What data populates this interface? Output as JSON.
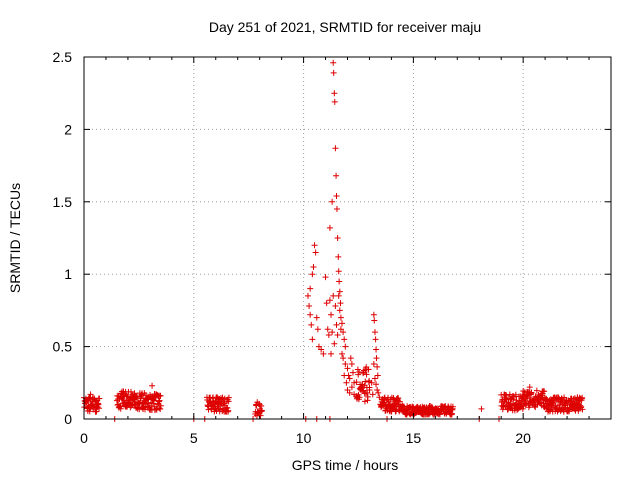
{
  "chart_data": {
    "type": "scatter",
    "title": "Day 251 of 2021, SRMTID for receiver maju",
    "xlabel": "GPS time / hours",
    "ylabel": "SRMTID / TECUs",
    "xlim": [
      0,
      24
    ],
    "ylim": [
      0,
      2.5
    ],
    "x_ticks": [
      0,
      5,
      10,
      15,
      20
    ],
    "x_tick_labels": [
      "0",
      "5",
      "10",
      "15",
      "20"
    ],
    "y_ticks": [
      0,
      0.5,
      1,
      1.5,
      2,
      2.5
    ],
    "y_tick_labels": [
      "0",
      "0.5",
      "1",
      "1.5",
      "2",
      "2.5"
    ],
    "grid": true,
    "marker": "+",
    "series_color": "#dd0000",
    "series": [
      {
        "name": "SRMTID",
        "segments": [
          {
            "x0": 0.0,
            "x1": 0.7,
            "base": 0.1,
            "amp": 0.05
          },
          {
            "x0": 1.5,
            "x1": 2.3,
            "base": 0.13,
            "amp": 0.06
          },
          {
            "x0": 2.3,
            "x1": 3.5,
            "base": 0.12,
            "amp": 0.06
          },
          {
            "x0": 5.6,
            "x1": 6.6,
            "base": 0.1,
            "amp": 0.05
          },
          {
            "x0": 7.8,
            "x1": 8.1,
            "base": 0.07,
            "amp": 0.05
          },
          {
            "x0": 12.4,
            "x1": 13.0,
            "base": 0.24,
            "amp": 0.12
          },
          {
            "x0": 13.5,
            "x1": 14.5,
            "base": 0.1,
            "amp": 0.05
          },
          {
            "x0": 14.5,
            "x1": 16.8,
            "base": 0.06,
            "amp": 0.03
          },
          {
            "x0": 19.0,
            "x1": 20.0,
            "base": 0.11,
            "amp": 0.06
          },
          {
            "x0": 20.0,
            "x1": 21.0,
            "base": 0.14,
            "amp": 0.06
          },
          {
            "x0": 21.0,
            "x1": 22.7,
            "base": 0.1,
            "amp": 0.05
          }
        ],
        "points": [
          {
            "x": 10.2,
            "y": 0.85
          },
          {
            "x": 10.25,
            "y": 0.78
          },
          {
            "x": 10.3,
            "y": 0.9
          },
          {
            "x": 10.35,
            "y": 0.65
          },
          {
            "x": 10.4,
            "y": 1.0
          },
          {
            "x": 10.45,
            "y": 1.05
          },
          {
            "x": 10.5,
            "y": 1.2
          },
          {
            "x": 10.55,
            "y": 1.15
          },
          {
            "x": 10.6,
            "y": 0.7
          },
          {
            "x": 10.65,
            "y": 0.62
          },
          {
            "x": 10.3,
            "y": 0.72
          },
          {
            "x": 10.4,
            "y": 0.55
          },
          {
            "x": 10.7,
            "y": 0.5
          },
          {
            "x": 10.8,
            "y": 0.48
          },
          {
            "x": 10.9,
            "y": 0.45
          },
          {
            "x": 11.0,
            "y": 0.98
          },
          {
            "x": 11.05,
            "y": 0.8
          },
          {
            "x": 11.1,
            "y": 0.62
          },
          {
            "x": 11.15,
            "y": 0.58
          },
          {
            "x": 11.2,
            "y": 1.32
          },
          {
            "x": 11.25,
            "y": 0.45
          },
          {
            "x": 11.3,
            "y": 1.5
          },
          {
            "x": 11.35,
            "y": 2.46
          },
          {
            "x": 11.37,
            "y": 2.39
          },
          {
            "x": 11.4,
            "y": 2.25
          },
          {
            "x": 11.42,
            "y": 2.19
          },
          {
            "x": 11.45,
            "y": 1.87
          },
          {
            "x": 11.48,
            "y": 1.68
          },
          {
            "x": 11.5,
            "y": 1.54
          },
          {
            "x": 11.52,
            "y": 1.45
          },
          {
            "x": 11.55,
            "y": 1.25
          },
          {
            "x": 11.58,
            "y": 1.12
          },
          {
            "x": 11.6,
            "y": 1.02
          },
          {
            "x": 11.62,
            "y": 0.95
          },
          {
            "x": 11.65,
            "y": 0.88
          },
          {
            "x": 11.68,
            "y": 0.8
          },
          {
            "x": 11.7,
            "y": 0.7
          },
          {
            "x": 11.75,
            "y": 0.66
          },
          {
            "x": 11.8,
            "y": 0.6
          },
          {
            "x": 11.85,
            "y": 0.55
          },
          {
            "x": 11.9,
            "y": 0.5
          },
          {
            "x": 11.35,
            "y": 0.85
          },
          {
            "x": 11.45,
            "y": 0.78
          },
          {
            "x": 11.5,
            "y": 0.65
          },
          {
            "x": 11.55,
            "y": 0.58
          },
          {
            "x": 11.6,
            "y": 0.85
          },
          {
            "x": 11.65,
            "y": 0.75
          },
          {
            "x": 11.7,
            "y": 0.62
          },
          {
            "x": 11.2,
            "y": 0.82
          },
          {
            "x": 11.25,
            "y": 0.72
          },
          {
            "x": 11.3,
            "y": 0.6
          },
          {
            "x": 11.4,
            "y": 0.52
          },
          {
            "x": 11.75,
            "y": 0.45
          },
          {
            "x": 11.8,
            "y": 0.42
          },
          {
            "x": 11.9,
            "y": 0.38
          },
          {
            "x": 12.0,
            "y": 0.35
          },
          {
            "x": 12.05,
            "y": 0.3
          },
          {
            "x": 12.1,
            "y": 0.28
          },
          {
            "x": 12.15,
            "y": 0.42
          },
          {
            "x": 12.2,
            "y": 0.38
          },
          {
            "x": 12.25,
            "y": 0.32
          },
          {
            "x": 12.3,
            "y": 0.25
          },
          {
            "x": 11.95,
            "y": 0.25
          },
          {
            "x": 12.0,
            "y": 0.2
          },
          {
            "x": 12.1,
            "y": 0.18
          },
          {
            "x": 12.2,
            "y": 0.22
          },
          {
            "x": 12.3,
            "y": 0.17
          },
          {
            "x": 11.85,
            "y": 0.3
          },
          {
            "x": 13.2,
            "y": 0.72
          },
          {
            "x": 13.22,
            "y": 0.68
          },
          {
            "x": 13.25,
            "y": 0.6
          },
          {
            "x": 13.28,
            "y": 0.55
          },
          {
            "x": 13.3,
            "y": 0.48
          },
          {
            "x": 13.32,
            "y": 0.42
          },
          {
            "x": 13.35,
            "y": 0.36
          },
          {
            "x": 13.38,
            "y": 0.3
          },
          {
            "x": 13.2,
            "y": 0.38
          },
          {
            "x": 13.25,
            "y": 0.28
          },
          {
            "x": 13.3,
            "y": 0.24
          },
          {
            "x": 13.35,
            "y": 0.2
          },
          {
            "x": 13.4,
            "y": 0.18
          },
          {
            "x": 13.0,
            "y": 0.2
          },
          {
            "x": 13.1,
            "y": 0.25
          },
          {
            "x": 13.15,
            "y": 0.17
          },
          {
            "x": 13.45,
            "y": 0.15
          },
          {
            "x": 3.1,
            "y": 0.23
          },
          {
            "x": 0.3,
            "y": 0.17
          },
          {
            "x": 1.8,
            "y": 0.19
          },
          {
            "x": 20.3,
            "y": 0.22
          },
          {
            "x": 18.1,
            "y": 0.07
          },
          {
            "x": 1.4,
            "y": 0.0
          },
          {
            "x": 5.0,
            "y": 0.0
          },
          {
            "x": 5.5,
            "y": 0.0
          },
          {
            "x": 7.7,
            "y": 0.0
          },
          {
            "x": 10.1,
            "y": 0.0
          },
          {
            "x": 10.6,
            "y": 0.0
          },
          {
            "x": 11.2,
            "y": 0.0
          },
          {
            "x": 13.8,
            "y": 0.0
          },
          {
            "x": 18.0,
            "y": 0.0
          },
          {
            "x": 18.9,
            "y": 0.0
          }
        ]
      }
    ]
  }
}
